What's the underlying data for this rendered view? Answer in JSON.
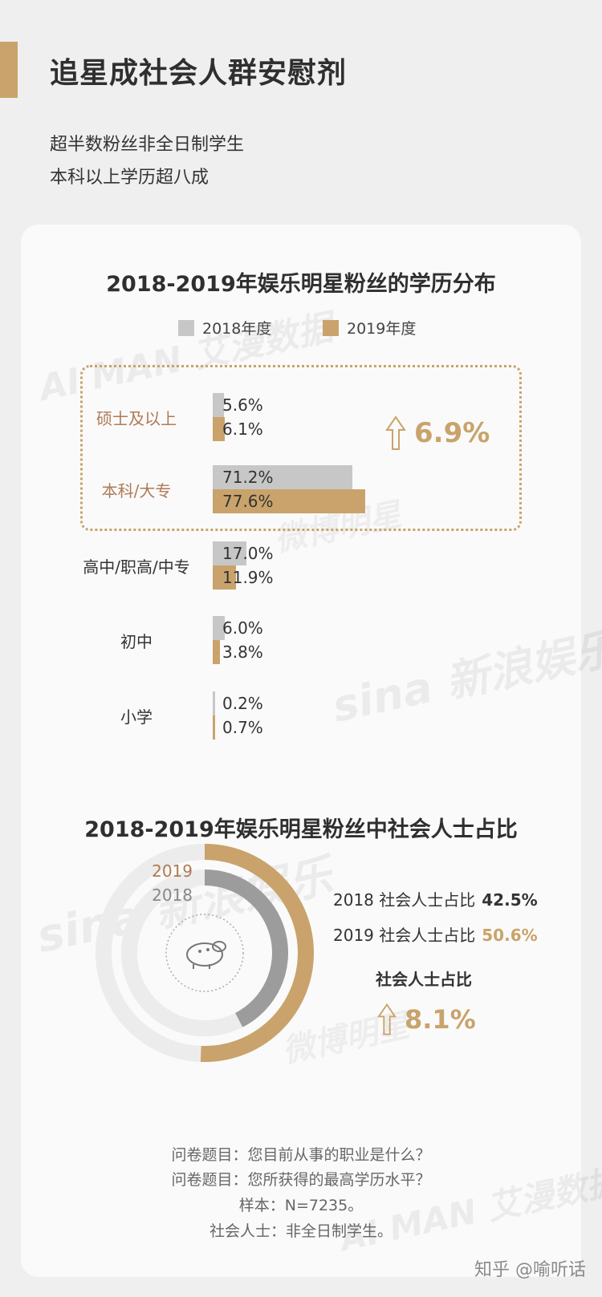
{
  "header": {
    "title": "追星成社会人群安慰剂",
    "subtitle_line1": "超半数粉丝非全日制学生",
    "subtitle_line2": "本科以上学历超八成"
  },
  "colors": {
    "accent": "#c9a36b",
    "grey": "#c7c7c7",
    "dark_grey": "#9c9c9c",
    "text": "#333333"
  },
  "watermarks": [
    "AI MAN 艾漫数据",
    "微博明星",
    "sina 新浪娱乐",
    "sina 新浪娱乐",
    "微博明星",
    "AI MAN 艾漫数据"
  ],
  "chart_data": [
    {
      "type": "bar",
      "orientation": "horizontal",
      "title": "2018-2019年娱乐明星粉丝的学历分布",
      "categories": [
        "硕士及以上",
        "本科/大专",
        "高中/职高/中专",
        "初中",
        "小学"
      ],
      "series": [
        {
          "name": "2018年度",
          "values": [
            5.6,
            71.2,
            17.0,
            6.0,
            0.2
          ],
          "labels": [
            "5.6%",
            "71.2%",
            "17.0%",
            "6.0%",
            "0.2%"
          ]
        },
        {
          "name": "2019年度",
          "values": [
            6.1,
            77.6,
            11.9,
            3.8,
            0.7
          ],
          "labels": [
            "6.1%",
            "77.6%",
            "11.9%",
            "3.8%",
            "0.7%"
          ]
        }
      ],
      "highlight_increase": "6.9%",
      "xlim": [
        0,
        100
      ]
    },
    {
      "type": "pie",
      "subtype": "concentric-donut",
      "title": "2018-2019年娱乐明星粉丝中社会人士占比",
      "rings": [
        {
          "year_label": "2019",
          "value": 50.6
        },
        {
          "year_label": "2018",
          "value": 42.5
        }
      ],
      "stats": [
        {
          "label": "2018 社会人士占比",
          "value": "42.5%"
        },
        {
          "label": "2019 社会人士占比",
          "value": "50.6%"
        }
      ],
      "increase_label": "社会人士占比",
      "increase_value": "8.1%"
    }
  ],
  "footnotes": [
    "问卷题目：您目前从事的职业是什么？",
    "问卷题目：您所获得的最高学历水平？",
    "样本：N=7235。",
    "社会人士：非全日制学生。"
  ],
  "credit": "知乎 @喻听话"
}
